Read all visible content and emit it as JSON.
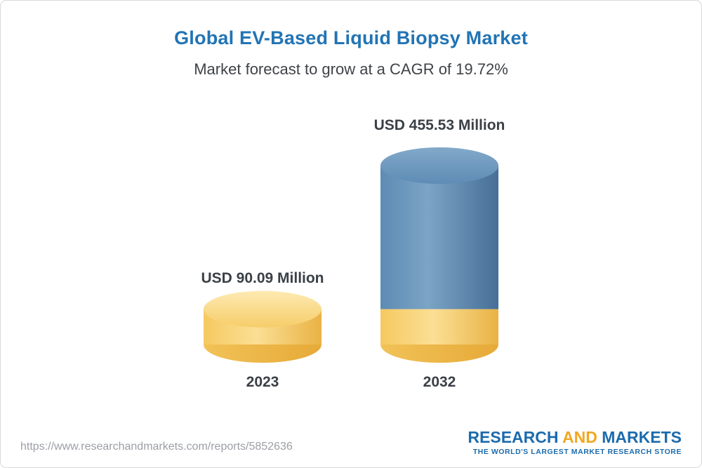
{
  "header": {
    "title": "Global EV-Based Liquid Biopsy Market",
    "subtitle": "Market forecast to grow at a CAGR of 19.72%"
  },
  "chart_data": {
    "type": "bar",
    "variant": "3d-cylinder",
    "title": "Global EV-Based Liquid Biopsy Market",
    "subtitle": "Market forecast to grow at a CAGR of 19.72%",
    "categories": [
      "2023",
      "2032"
    ],
    "values": [
      90.09,
      455.53
    ],
    "value_labels": [
      "USD 90.09 Million",
      "USD 455.53 Million"
    ],
    "unit": "USD Million",
    "cagr": "19.72%",
    "ylim": [
      0,
      455.53
    ],
    "grid": false,
    "legend": false,
    "colors": {
      "bar_2023": "#f6c75e",
      "bar_2032": "#5d8cb5",
      "bar_2032_base_band": "#f6c75e"
    }
  },
  "footer": {
    "url": "https://www.researchandmarkets.com/reports/5852636",
    "logo": {
      "word_research": "RESEARCH ",
      "word_and": "AND",
      "word_markets": " MARKETS",
      "tagline": "THE WORLD'S LARGEST MARKET RESEARCH STORE"
    }
  },
  "colors": {
    "title": "#2274b4",
    "subtitle": "#3f4348",
    "labels": "#3a4046",
    "url_text": "#9b9fa5",
    "logo_blue": "#1c6bad",
    "logo_gold": "#f0a822"
  }
}
